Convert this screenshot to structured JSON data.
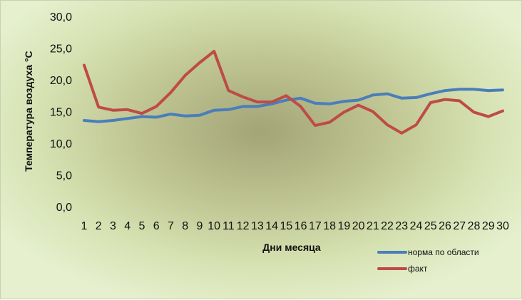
{
  "chart_data": {
    "type": "line",
    "title": "",
    "xlabel": "Дни месяца",
    "ylabel": "Температура воздуха °С",
    "ylim": [
      0,
      30
    ],
    "yticks": [
      "0,0",
      "5,0",
      "10,0",
      "15,0",
      "20,0",
      "25,0",
      "30,0"
    ],
    "categories": [
      "1",
      "2",
      "3",
      "4",
      "5",
      "6",
      "7",
      "8",
      "9",
      "10",
      "11",
      "12",
      "13",
      "14",
      "15",
      "16",
      "17",
      "18",
      "19",
      "20",
      "21",
      "22",
      "23",
      "24",
      "25",
      "26",
      "27",
      "28",
      "29",
      "30"
    ],
    "grid": false,
    "legend": "bottom-right",
    "series": [
      {
        "name": "норма по области",
        "color": "#4a7ebb",
        "values": [
          13.6,
          13.4,
          13.6,
          13.9,
          14.2,
          14.1,
          14.6,
          14.3,
          14.4,
          15.2,
          15.3,
          15.8,
          15.8,
          16.2,
          16.8,
          17.1,
          16.3,
          16.2,
          16.6,
          16.8,
          17.6,
          17.8,
          17.1,
          17.2,
          17.8,
          18.3,
          18.5,
          18.5,
          18.3,
          18.4
        ]
      },
      {
        "name": "факт",
        "color": "#be4b48",
        "values": [
          22.3,
          15.7,
          15.2,
          15.3,
          14.7,
          15.8,
          18.0,
          20.7,
          22.7,
          24.5,
          18.3,
          17.3,
          16.5,
          16.5,
          17.5,
          15.8,
          12.8,
          13.3,
          14.9,
          16.0,
          15.0,
          12.9,
          11.6,
          12.9,
          16.4,
          16.9,
          16.7,
          14.9,
          14.2,
          15.1
        ]
      }
    ]
  }
}
